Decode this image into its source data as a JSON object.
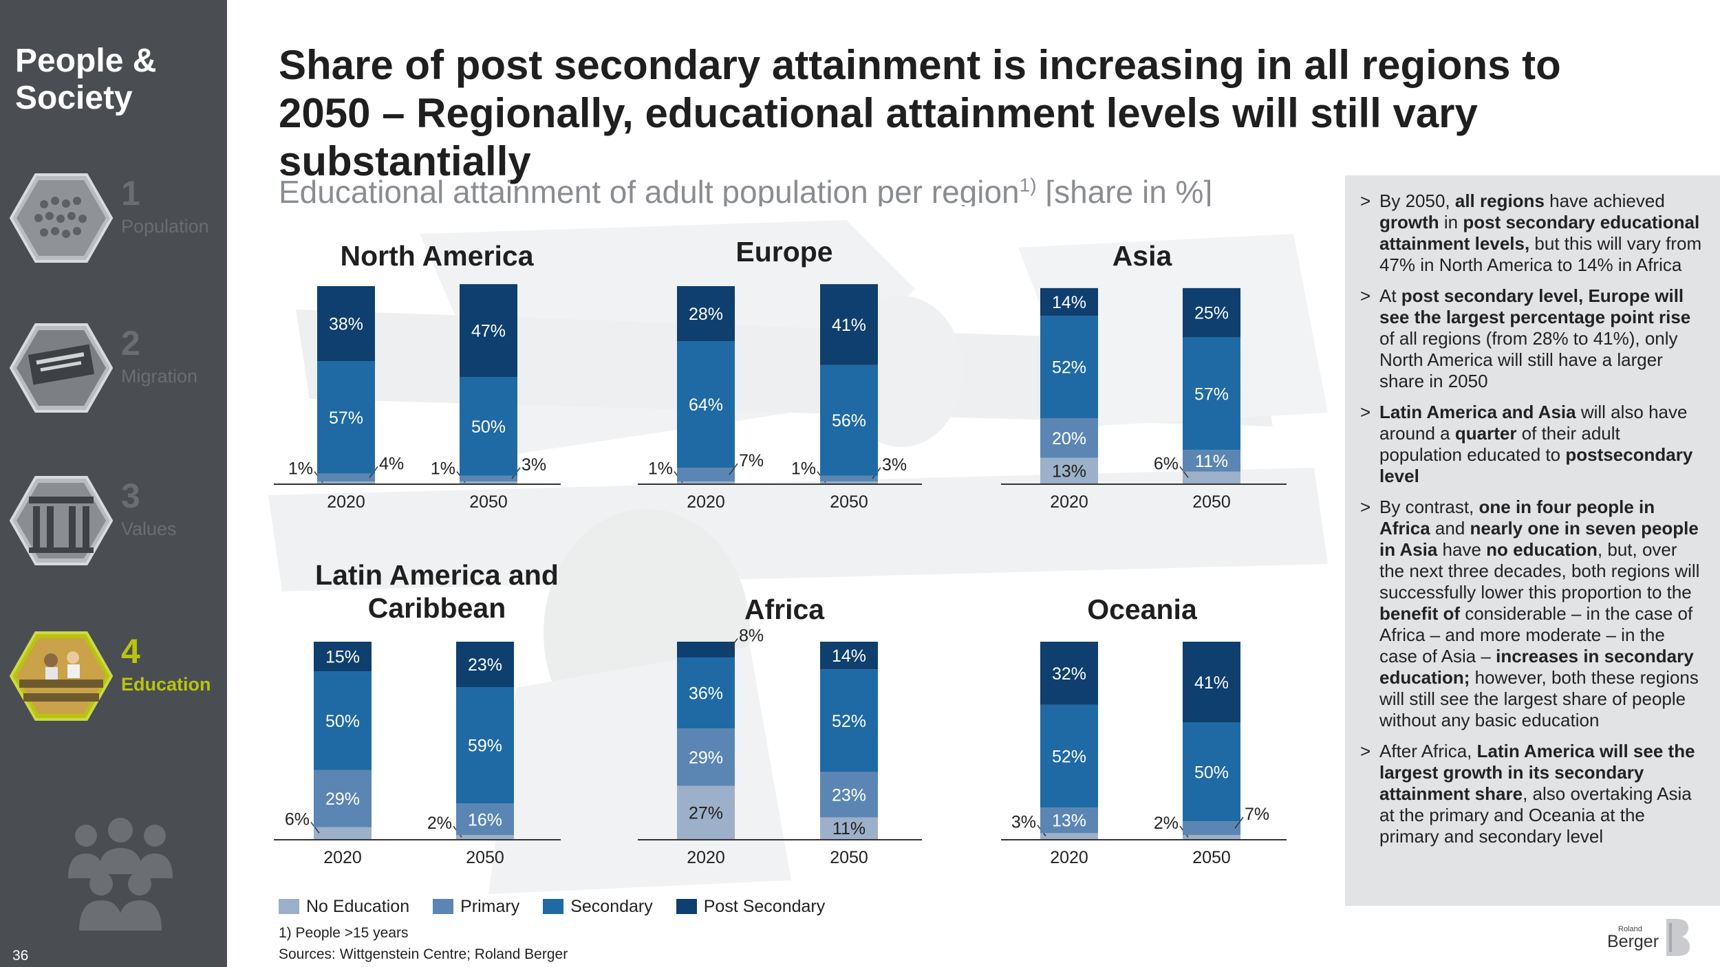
{
  "sidebar": {
    "title": "People & Society",
    "items": [
      {
        "number": "1",
        "label": "Population",
        "icon": "crowd-photo-icon",
        "active": false
      },
      {
        "number": "2",
        "label": "Migration",
        "icon": "immigration-sign-icon",
        "active": false
      },
      {
        "number": "3",
        "label": "Values",
        "icon": "columns-building-icon",
        "active": false
      },
      {
        "number": "4",
        "label": "Education",
        "icon": "classroom-photo-icon",
        "active": true
      }
    ],
    "page_number": "36"
  },
  "header": {
    "title": "Share of post secondary attainment is increasing in all regions to 2050 – Regionally, educational attainment levels will still vary substantially",
    "subtitle": "Educational attainment of adult population per region",
    "subtitle_sup": "1)",
    "subtitle_unit": " [share in %]"
  },
  "colors": {
    "no_education": "#9db0c9",
    "primary": "#5b86b3",
    "secondary": "#1f6aa4",
    "post_secondary": "#0e3f6e",
    "accent": "#b8c40e",
    "sidebar": "#4a4d52"
  },
  "chart_data": [
    {
      "type": "bar",
      "title": "North America",
      "categories": [
        "2020",
        "2050"
      ],
      "series": [
        {
          "name": "No Education",
          "values": [
            1,
            1
          ]
        },
        {
          "name": "Primary",
          "values": [
            4,
            3
          ]
        },
        {
          "name": "Secondary",
          "values": [
            57,
            50
          ]
        },
        {
          "name": "Post Secondary",
          "values": [
            38,
            47
          ]
        }
      ],
      "ylim": [
        0,
        100
      ]
    },
    {
      "type": "bar",
      "title": "Europe",
      "categories": [
        "2020",
        "2050"
      ],
      "series": [
        {
          "name": "No Education",
          "values": [
            1,
            1
          ]
        },
        {
          "name": "Primary",
          "values": [
            7,
            3
          ]
        },
        {
          "name": "Secondary",
          "values": [
            64,
            56
          ]
        },
        {
          "name": "Post Secondary",
          "values": [
            28,
            41
          ]
        }
      ],
      "ylim": [
        0,
        100
      ]
    },
    {
      "type": "bar",
      "title": "Asia",
      "categories": [
        "2020",
        "2050"
      ],
      "series": [
        {
          "name": "No Education",
          "values": [
            13,
            6
          ]
        },
        {
          "name": "Primary",
          "values": [
            20,
            11
          ]
        },
        {
          "name": "Secondary",
          "values": [
            52,
            57
          ]
        },
        {
          "name": "Post Secondary",
          "values": [
            14,
            25
          ]
        }
      ],
      "ylim": [
        0,
        100
      ]
    },
    {
      "type": "bar",
      "title": "Latin America and Caribbean",
      "categories": [
        "2020",
        "2050"
      ],
      "series": [
        {
          "name": "No Education",
          "values": [
            6,
            2
          ]
        },
        {
          "name": "Primary",
          "values": [
            29,
            16
          ]
        },
        {
          "name": "Secondary",
          "values": [
            50,
            59
          ]
        },
        {
          "name": "Post Secondary",
          "values": [
            15,
            23
          ]
        }
      ],
      "ylim": [
        0,
        100
      ]
    },
    {
      "type": "bar",
      "title": "Africa",
      "categories": [
        "2020",
        "2050"
      ],
      "series": [
        {
          "name": "No Education",
          "values": [
            27,
            11
          ]
        },
        {
          "name": "Primary",
          "values": [
            29,
            23
          ]
        },
        {
          "name": "Secondary",
          "values": [
            36,
            52
          ]
        },
        {
          "name": "Post Secondary",
          "values": [
            8,
            14
          ]
        }
      ],
      "ylim": [
        0,
        100
      ]
    },
    {
      "type": "bar",
      "title": "Oceania",
      "categories": [
        "2020",
        "2050"
      ],
      "series": [
        {
          "name": "No Education",
          "values": [
            3,
            2
          ]
        },
        {
          "name": "Primary",
          "values": [
            13,
            7
          ]
        },
        {
          "name": "Secondary",
          "values": [
            52,
            50
          ]
        },
        {
          "name": "Post Secondary",
          "values": [
            32,
            41
          ]
        }
      ],
      "ylim": [
        0,
        100
      ]
    }
  ],
  "legend": [
    {
      "label": "No Education",
      "color": "#9db0c9"
    },
    {
      "label": "Primary",
      "color": "#5b86b3"
    },
    {
      "label": "Secondary",
      "color": "#1f6aa4"
    },
    {
      "label": "Post Secondary",
      "color": "#0e3f6e"
    }
  ],
  "footnote": "1) People >15 years",
  "sources": "Sources: Wittgenstein Centre; Roland Berger",
  "findings": [
    [
      {
        "t": "By 2050, "
      },
      {
        "t": "all regions",
        "b": true
      },
      {
        "t": " have achieved "
      },
      {
        "t": "growth",
        "b": true
      },
      {
        "t": " in "
      },
      {
        "t": "post secondary educational attainment levels,",
        "b": true
      },
      {
        "t": " but this will vary from 47% in North America to 14% in Africa"
      }
    ],
    [
      {
        "t": "At "
      },
      {
        "t": "post secondary level, Europe will see the largest percentage point rise",
        "b": true
      },
      {
        "t": " of all regions (from 28% to 41%), only North America will still have a larger share in 2050"
      }
    ],
    [
      {
        "t": "Latin America and Asia",
        "b": true
      },
      {
        "t": " will also have around a "
      },
      {
        "t": "quarter",
        "b": true
      },
      {
        "t": " of their adult population educated to "
      },
      {
        "t": "postsecondary level",
        "b": true
      }
    ],
    [
      {
        "t": "By contrast, "
      },
      {
        "t": "one in four people in Africa",
        "b": true
      },
      {
        "t": " and "
      },
      {
        "t": "nearly one in seven people in Asia",
        "b": true
      },
      {
        "t": " have "
      },
      {
        "t": "no education",
        "b": true
      },
      {
        "t": ", but, over the next three decades, both regions will successfully lower this proportion to the "
      },
      {
        "t": "benefit of",
        "b": true
      },
      {
        "t": " considerable – in the case of Africa – and more moderate – in the case of Asia – "
      },
      {
        "t": "increases in secondary education;",
        "b": true
      },
      {
        "t": " however, both these regions will still see the largest share of people without any basic education"
      }
    ],
    [
      {
        "t": "After Africa, "
      },
      {
        "t": "Latin America will see the largest growth in its secondary attainment share",
        "b": true
      },
      {
        "t": ", also overtaking Asia at the primary and Oceania at the primary and secondary level"
      }
    ]
  ],
  "logo": {
    "small": "Roland",
    "name": "Berger"
  }
}
